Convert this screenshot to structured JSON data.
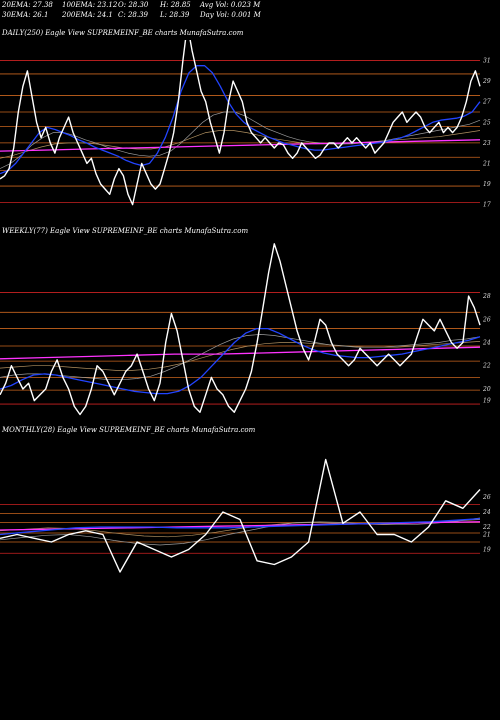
{
  "header": {
    "ema20": "20EMA: 27.38",
    "ema100": "100EMA: 23.12",
    "open": "O: 28.30",
    "high": "H: 28.85",
    "avg_vol": "Avg Vol: 0.023 M",
    "ema30": "30EMA: 26.1",
    "ema200": "200EMA: 24.1",
    "close": "C: 28.39",
    "low": "L: 28.39",
    "day_vol": "Day Vol: 0.001 M"
  },
  "colors": {
    "background": "#000000",
    "price": "#ffffff",
    "ema_blue": "#2244ff",
    "ema_magenta": "#ff33ff",
    "level_orange": "#c8641e",
    "level_red": "#cc2222",
    "ema_grey": "#9a9a9a",
    "ema_tan": "#b09060"
  },
  "chart_data": [
    {
      "type": "line",
      "title": "DAILY(250) Eagle  View  SUPREMEINF_BE charts MunafaSutra.com",
      "y_ticks": [
        "31",
        "29",
        "27",
        "25",
        "23",
        "21",
        "19",
        "17"
      ],
      "ylim": [
        15.5,
        33
      ],
      "levels": [
        31,
        29.7,
        27.6,
        26,
        24.6,
        23,
        21.6,
        20.3,
        18.8,
        17.2
      ],
      "series": [
        {
          "role": "price",
          "values": [
            19.5,
            19.8,
            20.5,
            22.5,
            26.0,
            28.5,
            30.0,
            27.5,
            25.0,
            23.5,
            24.5,
            23.0,
            22.0,
            23.5,
            24.5,
            25.5,
            24.0,
            23.0,
            22.0,
            21.0,
            21.5,
            20.0,
            19.0,
            18.5,
            18.0,
            19.5,
            20.5,
            19.8,
            18.0,
            17.0,
            19.0,
            21.0,
            20.0,
            19.0,
            18.5,
            19.0,
            20.5,
            22.0,
            24.0,
            27.0,
            31.0,
            34.5,
            32.0,
            30.0,
            28.0,
            27.0,
            25.0,
            23.5,
            22.0,
            24.0,
            27.0,
            29.0,
            28.0,
            27.0,
            25.0,
            24.0,
            23.5,
            23.0,
            23.5,
            23.0,
            22.5,
            23.0,
            22.8,
            22.0,
            21.5,
            22.0,
            23.0,
            22.5,
            22.0,
            21.5,
            21.8,
            22.5,
            23.0,
            23.0,
            22.5,
            23.0,
            23.5,
            23.0,
            23.5,
            23.0,
            22.5,
            23.0,
            22.0,
            22.5,
            23.0,
            24.0,
            25.0,
            25.5,
            26.0,
            25.0,
            25.5,
            26.0,
            25.5,
            24.5,
            24.0,
            24.5,
            25.0,
            24.0,
            24.5,
            24.0,
            24.5,
            25.5,
            27.0,
            29.0,
            30.0,
            28.5
          ]
        },
        {
          "role": "ema_blue",
          "values": [
            20.0,
            20.3,
            21.0,
            22.0,
            23.0,
            24.0,
            24.5,
            24.3,
            24.0,
            23.7,
            23.3,
            23.0,
            22.6,
            22.3,
            22.0,
            21.7,
            21.3,
            21.0,
            20.8,
            21.0,
            22.0,
            23.5,
            25.5,
            28.0,
            29.8,
            30.5,
            30.5,
            29.8,
            28.5,
            27.0,
            25.8,
            25.0,
            24.4,
            24.0,
            23.6,
            23.3,
            23.0,
            22.8,
            22.6,
            22.4,
            22.3,
            22.3,
            22.4,
            22.5,
            22.6,
            22.7,
            22.8,
            22.9,
            23.0,
            23.1,
            23.3,
            23.5,
            23.8,
            24.2,
            24.6,
            25.0,
            25.2,
            25.3,
            25.4,
            25.6,
            26.0,
            27.0
          ]
        },
        {
          "role": "ema_magenta",
          "values": [
            22.2,
            22.3,
            22.4,
            22.5,
            22.6,
            22.7,
            22.8,
            22.9,
            23.0,
            23.1,
            23.2,
            23.3
          ]
        },
        {
          "role": "ema_grey",
          "values": [
            20.5,
            21.0,
            21.8,
            22.8,
            23.5,
            24.0,
            24.0,
            23.7,
            23.3,
            23.0,
            22.6,
            22.3,
            22.0,
            21.8,
            21.7,
            21.8,
            22.2,
            23.0,
            24.0,
            25.0,
            25.7,
            26.0,
            26.0,
            25.6,
            25.0,
            24.4,
            24.0,
            23.6,
            23.3,
            23.1,
            23.0,
            22.9,
            22.9,
            22.9,
            23.0,
            23.1,
            23.2,
            23.4,
            23.6,
            23.8,
            24.0,
            24.2,
            24.4,
            24.6,
            24.8,
            25.2
          ]
        },
        {
          "role": "ema_tan",
          "values": [
            21.5,
            21.8,
            22.2,
            22.6,
            22.9,
            23.0,
            23.0,
            22.9,
            22.7,
            22.5,
            22.4,
            22.4,
            22.6,
            23.0,
            23.5,
            24.0,
            24.2,
            24.2,
            24.0,
            23.7,
            23.4,
            23.2,
            23.0,
            22.9,
            22.9,
            22.9,
            23.0,
            23.1,
            23.2,
            23.3,
            23.4,
            23.5,
            23.6,
            23.8,
            24.0,
            24.2
          ]
        }
      ]
    },
    {
      "type": "line",
      "title": "WEEKLY(77) Eagle  View  SUPREMEINF_BE charts MunafaSutra.com",
      "y_ticks": [
        "28",
        "26",
        "24",
        "22",
        "20",
        "19"
      ],
      "ylim": [
        17.5,
        33
      ],
      "levels": [
        28.3,
        26.6,
        25.2,
        23.7,
        22.4,
        21.0,
        19.9,
        18.7
      ],
      "series": [
        {
          "role": "price",
          "values": [
            19.5,
            20.5,
            22.0,
            21.0,
            20.0,
            20.5,
            19.0,
            19.5,
            20.0,
            21.5,
            22.5,
            21.0,
            20.0,
            18.5,
            17.8,
            18.5,
            20.0,
            22.0,
            21.5,
            20.5,
            19.5,
            20.5,
            21.5,
            22.0,
            23.0,
            21.5,
            20.0,
            19.0,
            20.5,
            24.0,
            26.5,
            25.0,
            22.5,
            20.0,
            18.5,
            18.0,
            19.5,
            21.0,
            20.0,
            19.5,
            18.5,
            18.0,
            19.0,
            20.0,
            21.5,
            24.0,
            27.0,
            30.0,
            32.5,
            31.0,
            29.0,
            27.0,
            25.0,
            23.5,
            22.5,
            24.0,
            26.0,
            25.5,
            24.0,
            23.0,
            22.5,
            22.0,
            22.5,
            23.5,
            23.0,
            22.5,
            22.0,
            22.5,
            23.0,
            22.5,
            22.0,
            22.5,
            23.0,
            24.5,
            26.0,
            25.5,
            25.0,
            26.0,
            25.0,
            24.0,
            23.5,
            24.0,
            28.0,
            27.0,
            25.5
          ]
        },
        {
          "role": "ema_blue",
          "values": [
            20.0,
            20.3,
            20.8,
            21.2,
            21.3,
            21.2,
            21.0,
            20.8,
            20.6,
            20.4,
            20.2,
            20.0,
            19.8,
            19.7,
            19.6,
            19.6,
            19.8,
            20.3,
            21.0,
            22.0,
            23.0,
            24.0,
            24.8,
            25.2,
            25.2,
            24.8,
            24.3,
            23.8,
            23.4,
            23.1,
            22.9,
            22.8,
            22.7,
            22.7,
            22.8,
            22.9,
            23.0,
            23.2,
            23.4,
            23.6,
            23.8,
            24.0,
            24.2,
            24.5
          ]
        },
        {
          "role": "ema_magenta",
          "values": [
            22.6,
            22.7,
            22.8,
            22.9,
            23.0,
            23.0,
            23.1,
            23.2,
            23.3,
            23.4,
            23.5,
            23.6
          ]
        },
        {
          "role": "ema_grey",
          "values": [
            21.0,
            21.2,
            21.3,
            21.3,
            21.2,
            21.1,
            21.0,
            20.9,
            20.8,
            20.8,
            20.9,
            21.1,
            21.5,
            22.0,
            22.6,
            23.2,
            23.8,
            24.3,
            24.6,
            24.7,
            24.6,
            24.4,
            24.2,
            24.0,
            23.8,
            23.7,
            23.6,
            23.6,
            23.6,
            23.7,
            23.8,
            23.9,
            24.0,
            24.2,
            24.3,
            24.5
          ]
        },
        {
          "role": "ema_tan",
          "values": [
            21.8,
            21.9,
            22.0,
            22.0,
            21.9,
            21.8,
            21.7,
            21.6,
            21.6,
            21.7,
            21.9,
            22.2,
            22.6,
            23.0,
            23.4,
            23.7,
            23.9,
            24.0,
            24.0,
            23.9,
            23.8,
            23.7,
            23.6,
            23.6,
            23.6,
            23.7,
            23.8,
            23.9,
            24.0,
            24.1
          ]
        }
      ]
    },
    {
      "type": "line",
      "title": "MONTHLY(28) Eagle  View  SUPREMEINF_BE charts MunafaSutra.com",
      "y_ticks": [
        "26",
        "24",
        "22",
        "21",
        "19"
      ],
      "ylim": [
        10,
        34
      ],
      "levels": [
        25.0,
        23.8,
        22.6,
        21.2,
        20.0,
        18.5
      ],
      "series": [
        {
          "role": "price",
          "values": [
            20.5,
            21.0,
            20.5,
            20.0,
            21.0,
            21.5,
            21.0,
            16.0,
            20.0,
            19.0,
            18.0,
            19.0,
            21.0,
            24.0,
            23.0,
            17.5,
            17.0,
            18.0,
            20.0,
            31.0,
            22.5,
            24.0,
            21.0,
            21.0,
            20.0,
            22.0,
            25.5,
            24.5,
            27.0
          ]
        },
        {
          "role": "ema_blue",
          "values": [
            21.0,
            21.3,
            21.6,
            21.9,
            22.0,
            22.0,
            22.0,
            21.9,
            21.9,
            21.9,
            22.0,
            22.1,
            22.2,
            22.3,
            22.4,
            22.5,
            22.6,
            22.7,
            22.9,
            23.1
          ]
        },
        {
          "role": "ema_magenta",
          "values": [
            21.6,
            21.7,
            21.8,
            21.9,
            22.0,
            22.1,
            22.2,
            22.3,
            22.4,
            22.5,
            22.6,
            22.7
          ]
        },
        {
          "role": "ema_grey",
          "values": [
            20.3,
            20.6,
            20.9,
            21.0,
            20.7,
            20.2,
            19.8,
            19.6,
            19.8,
            20.3,
            21.0,
            21.6,
            22.2,
            22.6,
            22.7,
            22.6,
            22.4,
            22.3,
            22.3,
            22.5,
            22.8,
            23.2
          ]
        },
        {
          "role": "ema_tan",
          "values": [
            21.5,
            21.7,
            21.9,
            21.8,
            21.5,
            21.1,
            20.8,
            20.7,
            20.9,
            21.3,
            21.8,
            22.2,
            22.5,
            22.6,
            22.5,
            22.4,
            22.4,
            22.5,
            22.6,
            22.8,
            23.0
          ]
        }
      ]
    }
  ]
}
